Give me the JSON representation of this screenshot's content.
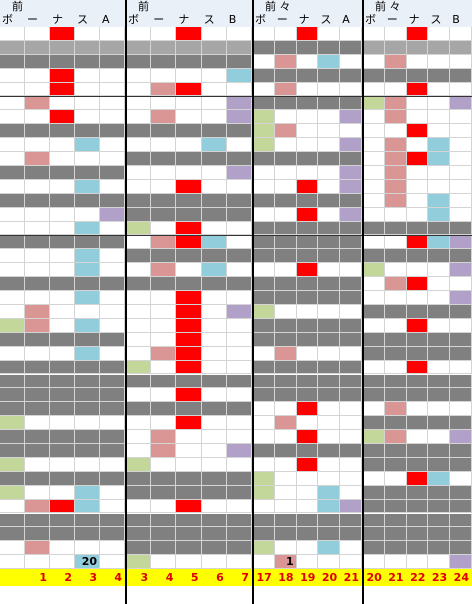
{
  "palette": {
    ".": "#ffffff",
    "g": "#808080",
    "l": "#a6a6a6",
    "r": "#ff0000",
    "p": "#da9694",
    "b": "#92cddc",
    "v": "#b1a0c7",
    "G": "#c4d79b"
  },
  "panels": [
    {
      "title": "前",
      "columns": [
        "ボ",
        "ー",
        "ナ",
        "ス",
        "A"
      ],
      "rows": [
        "..r..",
        "lllll",
        "ggggg",
        "..r..",
        "..r..",
        ".p...",
        "..r..",
        "ggggg",
        "...b.",
        ".p...",
        "ggggg",
        "...b.",
        "ggggg",
        "....v",
        "...b.",
        "ggggg",
        "...b.",
        "...b.",
        "ggggg",
        "...b.",
        ".p...",
        "Gp.b.",
        "ggggg",
        "...b.",
        "ggggg",
        "ggggg",
        "ggggg",
        "ggggg",
        "G....",
        "ggggg",
        "ggggg",
        "G....",
        "ggggg",
        "G..b.",
        ".prb.",
        "ggggg",
        "ggggg",
        ".p...",
        "...b."
      ],
      "last_row_texts": [
        null,
        null,
        null,
        "20",
        null
      ],
      "footer": [
        null,
        1,
        2,
        3,
        4
      ]
    },
    {
      "title": "前",
      "columns": [
        "ボ",
        "ー",
        "ナ",
        "ス",
        "B"
      ],
      "rows": [
        "..r..",
        "lllll",
        "ggggg",
        "....b",
        ".pr..",
        "....v",
        ".p..v",
        "ggggg",
        "...b.",
        "ggggg",
        "....v",
        "..r..",
        "ggggg",
        "ggggg",
        "G.r..",
        ".prb.",
        "ggggg",
        ".p.b.",
        "ggggg",
        "..r..",
        "..r.v",
        "..r..",
        "..r..",
        ".pr..",
        "G.r..",
        "ggggg",
        "..r..",
        "ggggg",
        "..r..",
        ".p...",
        ".p..v",
        "G....",
        "ggggg",
        "ggggg",
        "..r..",
        "ggggg",
        "ggggg",
        "ggggg",
        "G...."
      ],
      "last_row_texts": [
        null,
        null,
        null,
        null,
        null
      ],
      "footer": [
        3,
        4,
        5,
        6,
        7
      ]
    },
    {
      "title": "前 々",
      "columns": [
        "ボ",
        "ー",
        "ナ",
        "ス",
        "A"
      ],
      "rows": [
        "..r..",
        "ggggg",
        ".p.b.",
        "ggggg",
        ".p...",
        "ggggg",
        "G...v",
        "Gp...",
        "G...v",
        "ggggg",
        "....v",
        "..r.v",
        "ggggg",
        "..r.v",
        "ggggg",
        "ggggg",
        "ggggg",
        "..r..",
        "ggggg",
        "ggggg",
        "G....",
        "ggggg",
        "ggggg",
        ".p...",
        "ggggg",
        "ggggg",
        "ggggg",
        "..r..",
        ".p...",
        "..r..",
        "ggggg",
        "..r..",
        "G....",
        "G..b.",
        "...bv",
        "ggggg",
        "ggggg",
        "G..b.",
        ".p..."
      ],
      "last_row_texts": [
        null,
        "1",
        null,
        null,
        null
      ],
      "footer": [
        17,
        18,
        19,
        20,
        21
      ]
    },
    {
      "title": "前 々",
      "columns": [
        "ボ",
        "ー",
        "ナ",
        "ス",
        "B"
      ],
      "rows": [
        "..r..",
        "lllll",
        ".p...",
        "ggggg",
        "..r..",
        "Gp..v",
        ".p...",
        "..r..",
        ".p.b.",
        ".prb.",
        ".p...",
        ".p...",
        ".p.b.",
        "...b.",
        "ggggg",
        "..rbv",
        "ggggg",
        "G...v",
        ".pr..",
        "....v",
        "ggggg",
        "..r..",
        "ggggg",
        "ggggg",
        "..r..",
        "ggggg",
        "ggggg",
        ".p...",
        "ggggg",
        "Gp..v",
        "ggggg",
        "ggggg",
        "..rb.",
        "ggggg",
        "ggggg",
        "ggggg",
        "ggggg",
        "ggggg",
        "....v"
      ],
      "last_row_texts": [
        null,
        null,
        null,
        null,
        null
      ],
      "footer": [
        20,
        21,
        22,
        23,
        24
      ]
    }
  ]
}
